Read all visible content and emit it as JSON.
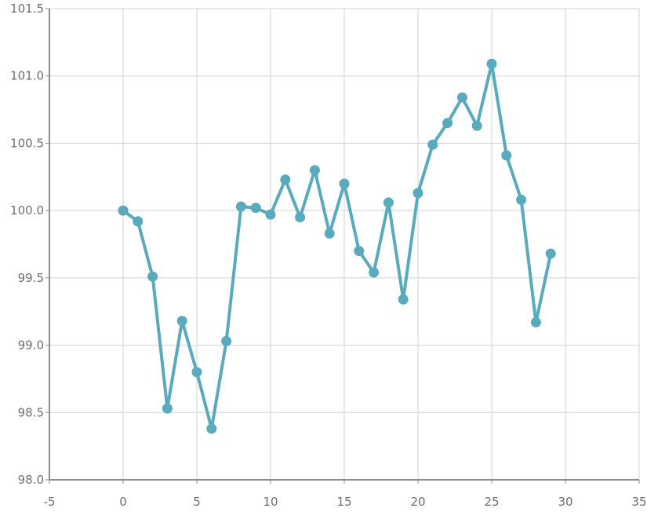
{
  "chart_data": {
    "type": "line",
    "title": "",
    "xlabel": "",
    "ylabel": "",
    "xlim": [
      -5,
      35
    ],
    "ylim": [
      98.0,
      101.5
    ],
    "x_ticks": [
      "-5",
      "0",
      "5",
      "10",
      "15",
      "20",
      "25",
      "30",
      "35"
    ],
    "y_ticks": [
      "101.5",
      "101.0",
      "100.5",
      "100.0",
      "99.5",
      "99.0",
      "98.5",
      "98.0"
    ],
    "x_tick_values": [
      -5,
      0,
      5,
      10,
      15,
      20,
      25,
      30,
      35
    ],
    "y_tick_values": [
      101.5,
      101.0,
      100.5,
      100.0,
      99.5,
      99.0,
      98.5,
      98.0
    ],
    "grid": true,
    "legend": "none",
    "series": [
      {
        "color": "#5aaabe",
        "x": [
          0,
          1,
          2,
          3,
          4,
          5,
          6,
          7,
          8,
          9,
          10,
          11,
          12,
          13,
          14,
          15,
          16,
          17,
          18,
          19,
          20,
          21,
          22,
          23,
          24,
          25,
          26,
          27,
          28,
          29
        ],
        "y": [
          100.0,
          99.92,
          99.51,
          98.53,
          99.18,
          98.8,
          98.38,
          99.03,
          100.03,
          100.02,
          99.97,
          100.23,
          99.95,
          100.3,
          99.83,
          100.2,
          99.7,
          99.54,
          100.06,
          99.34,
          100.13,
          100.49,
          100.65,
          100.84,
          100.63,
          101.09,
          100.41,
          100.08,
          99.17,
          99.68
        ]
      }
    ]
  }
}
